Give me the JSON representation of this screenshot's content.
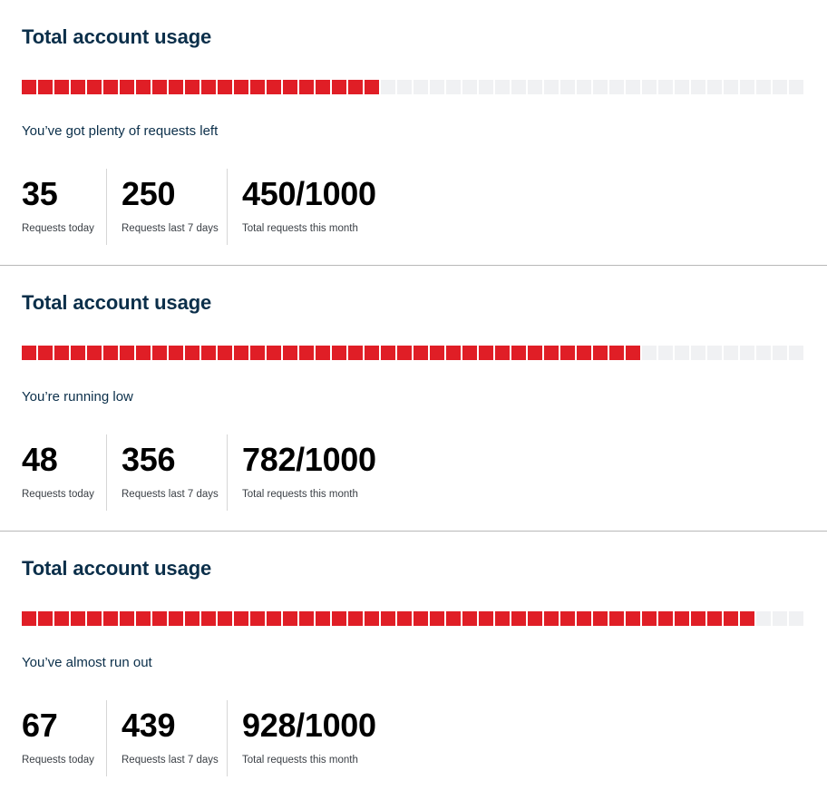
{
  "cards": [
    {
      "title": "Total account usage",
      "usage_fraction": 0.45,
      "status": "You’ve got plenty of requests left",
      "stats": [
        {
          "value": "35",
          "label": "Requests today"
        },
        {
          "value": "250",
          "label": "Requests last 7 days"
        },
        {
          "value": "450/1000",
          "label": "Total requests this month"
        }
      ]
    },
    {
      "title": "Total account usage",
      "usage_fraction": 0.782,
      "status": "You’re running low",
      "stats": [
        {
          "value": "48",
          "label": "Requests today"
        },
        {
          "value": "356",
          "label": "Requests last 7 days"
        },
        {
          "value": "782/1000",
          "label": "Total requests this month"
        }
      ]
    },
    {
      "title": "Total account usage",
      "usage_fraction": 0.928,
      "status": "You’ve almost run out",
      "stats": [
        {
          "value": "67",
          "label": "Requests today"
        },
        {
          "value": "439",
          "label": "Requests last 7 days"
        },
        {
          "value": "928/1000",
          "label": "Total requests this month"
        }
      ]
    }
  ],
  "colors": {
    "used": "#e01e26",
    "unused": "#f0f1f3",
    "heading": "#0b2f4a"
  }
}
